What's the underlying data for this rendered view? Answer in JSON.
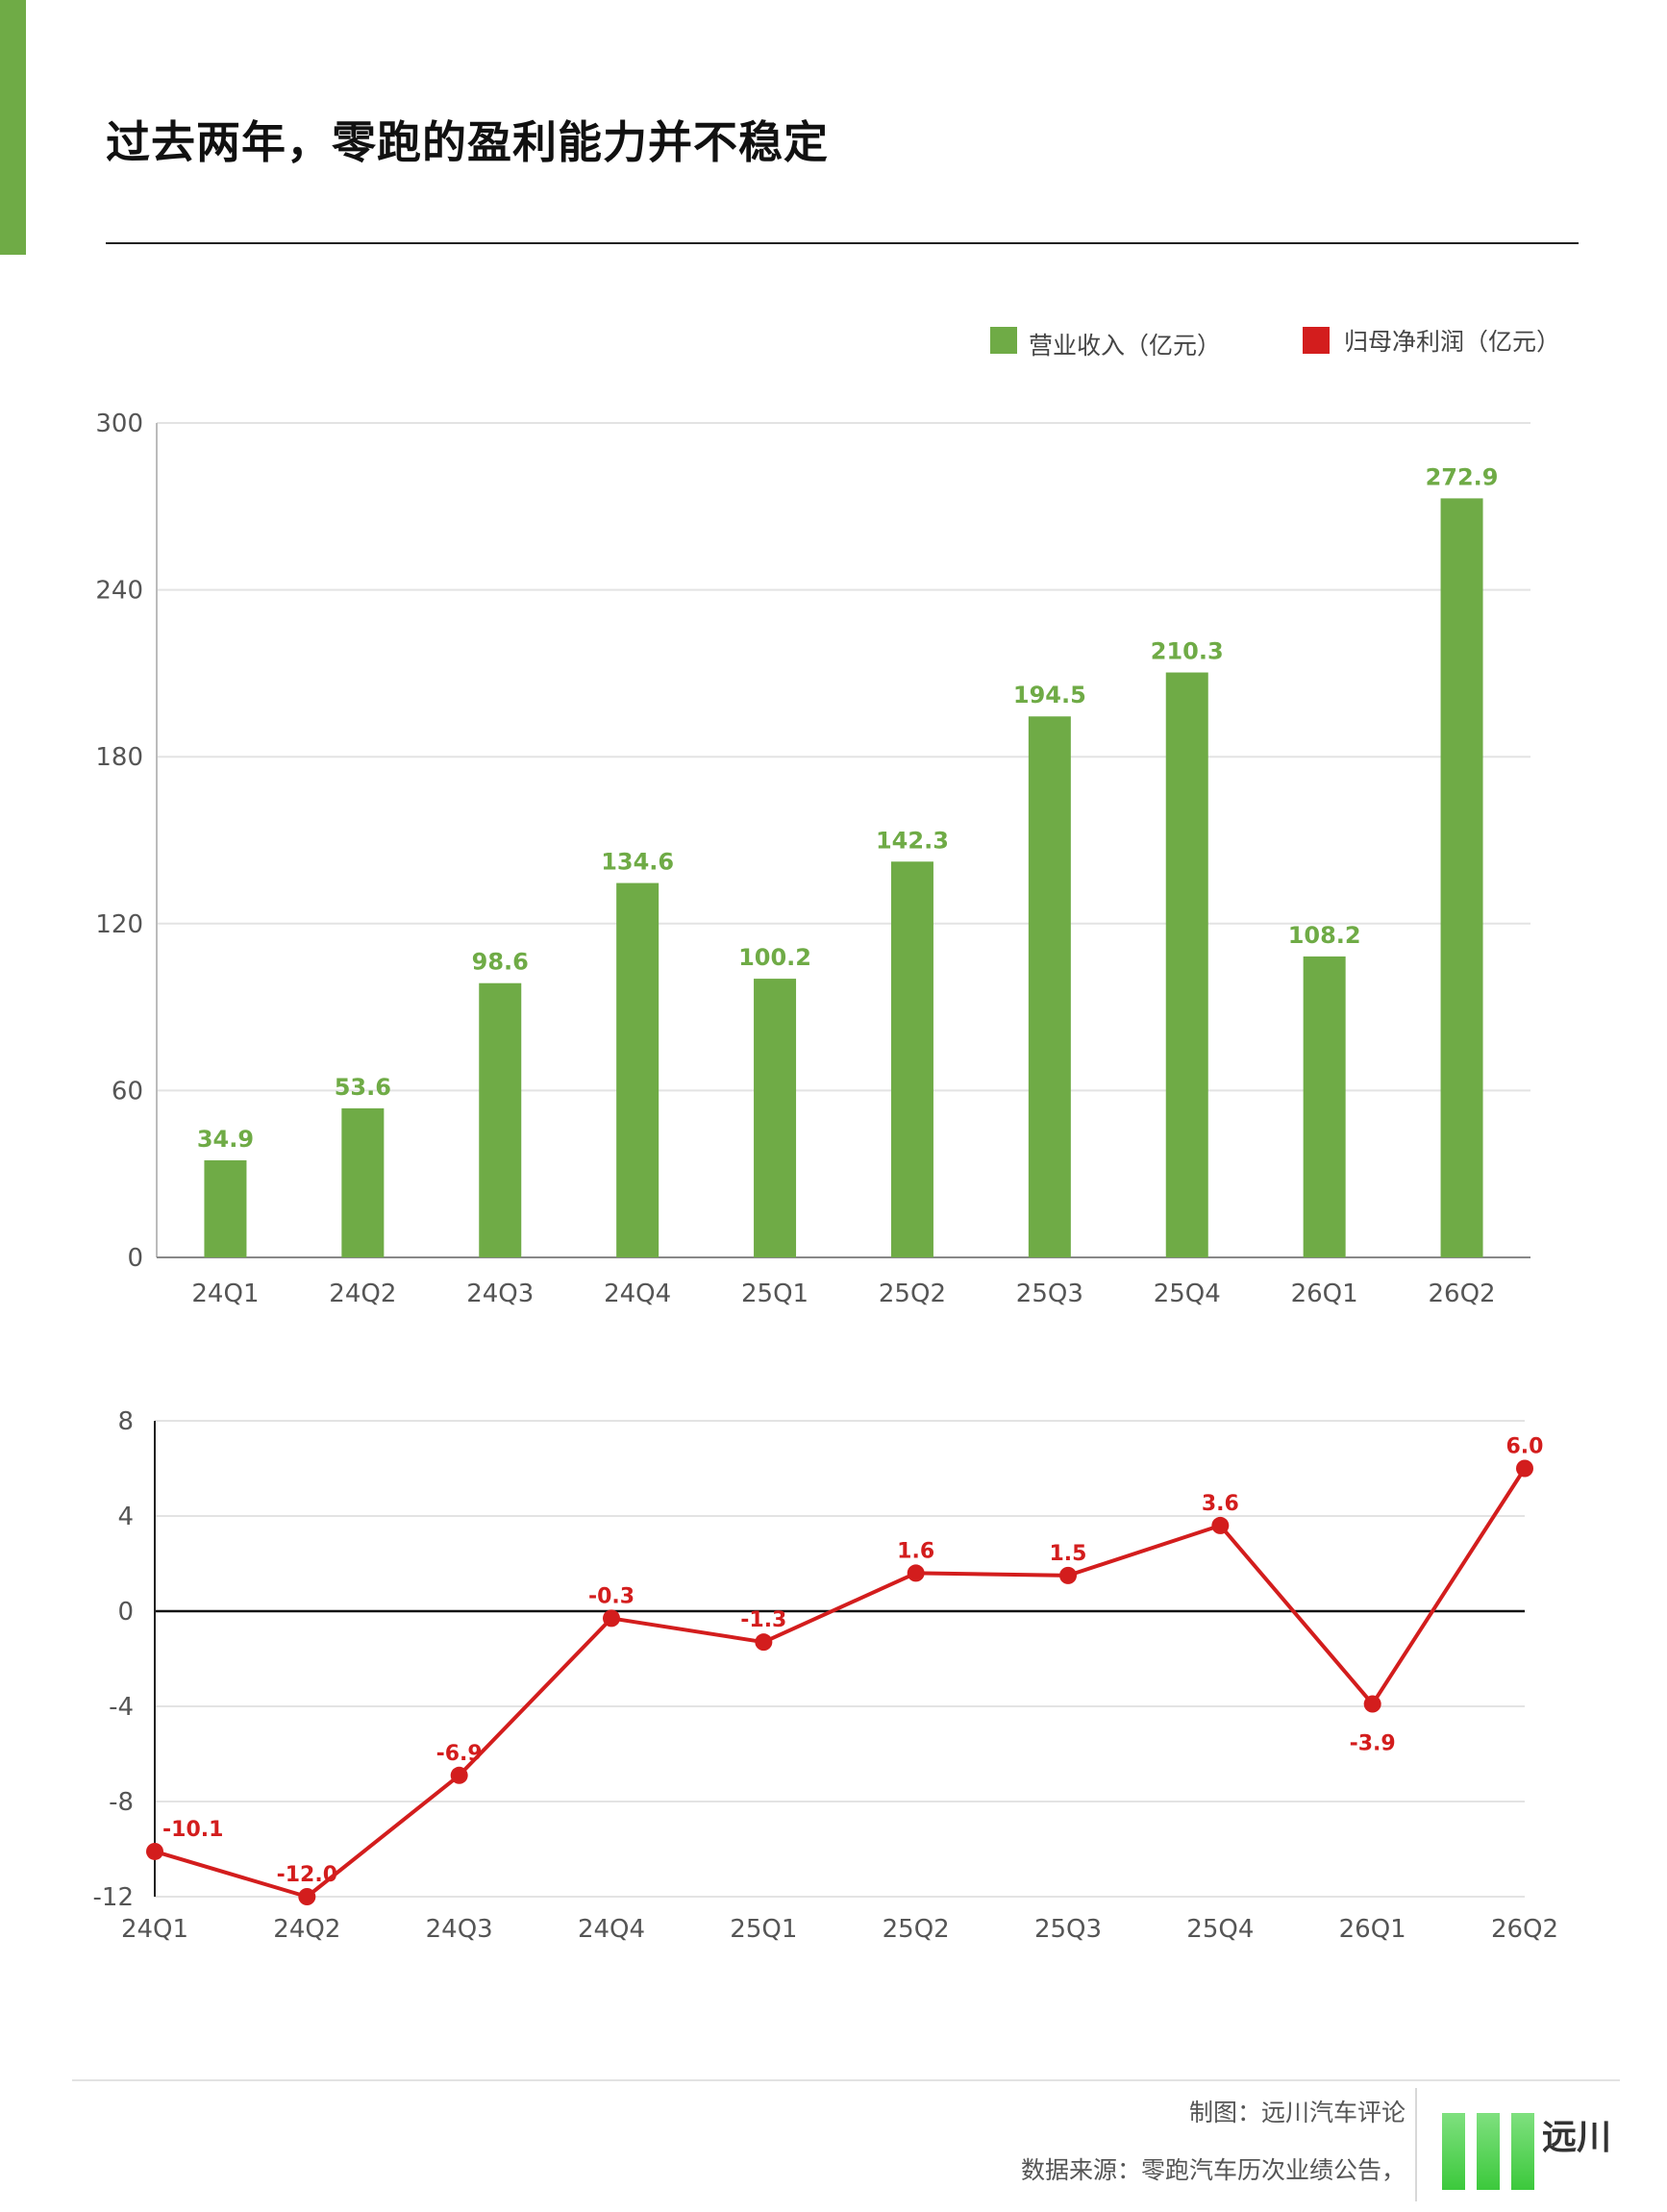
{
  "page": {
    "title": "过去两年，零跑的盈利能力并不稳定",
    "credit_made_by": "制图：远川汽车评论",
    "credit_source": "数据来源：零跑汽车历次业绩公告，",
    "logo_text": "远川"
  },
  "chart_data": [
    {
      "type": "bar",
      "categories": [
        "24Q1",
        "24Q2",
        "24Q3",
        "24Q4",
        "25Q1",
        "25Q2",
        "25Q3",
        "25Q4",
        "26Q1",
        "26Q2"
      ],
      "series": [
        {
          "name": "营业收入（亿元）",
          "color": "#6fab46",
          "values": [
            34.9,
            53.6,
            98.6,
            134.6,
            100.2,
            142.3,
            194.5,
            210.3,
            108.2,
            272.9
          ]
        }
      ],
      "ylim": [
        0,
        300
      ],
      "yticks": [
        0,
        60,
        120,
        180,
        240,
        300
      ],
      "grid": true,
      "legend": "top-right"
    },
    {
      "type": "line",
      "categories": [
        "24Q1",
        "24Q2",
        "24Q3",
        "24Q4",
        "25Q1",
        "25Q2",
        "25Q3",
        "25Q4",
        "26Q1",
        "26Q2"
      ],
      "series": [
        {
          "name": "归母净利润（亿元）",
          "color": "#d31d1d",
          "values": [
            -10.1,
            -12.0,
            -6.9,
            -0.3,
            -1.3,
            1.6,
            1.5,
            3.6,
            -3.9,
            6.0
          ]
        }
      ],
      "ylim": [
        -12,
        8
      ],
      "yticks": [
        -12,
        -8,
        -4,
        0,
        4,
        8
      ],
      "grid": true
    }
  ]
}
